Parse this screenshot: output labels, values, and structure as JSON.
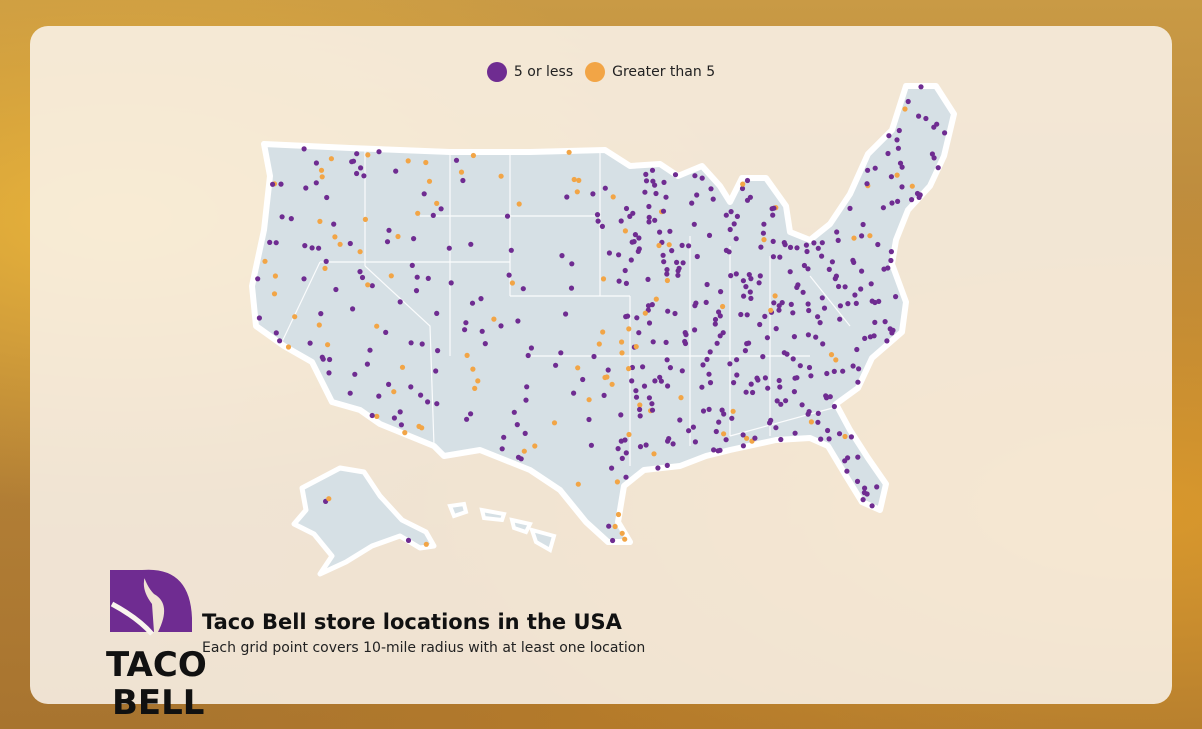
{
  "legend": {
    "items": [
      {
        "label": "5 or less",
        "color": "#6f2c91"
      },
      {
        "label": "Greater than 5",
        "color": "#f2a546"
      }
    ]
  },
  "map": {
    "land_color": "#d6e0e5",
    "border_color": "#ffffff",
    "marker_colors": {
      "low": "#6f2c91",
      "high": "#f2a546"
    }
  },
  "caption": {
    "title": "Taco Bell store locations in the USA",
    "subtitle": "Each grid point covers 10-mile radius with at least one location"
  },
  "logo": {
    "wordmark_top": "TACO",
    "wordmark_bottom": "BELL",
    "color": "#6f2c91"
  }
}
